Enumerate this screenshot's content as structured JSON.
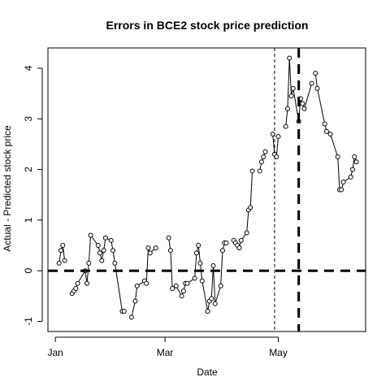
{
  "chart_data": {
    "type": "line",
    "title": "Errors in BCE2 stock price prediction",
    "xlabel": "Date",
    "ylabel": "Actual - Predicted stock price",
    "x_ticks": [
      {
        "label": "Jan",
        "value": "2013-01-01"
      },
      {
        "label": "Mar",
        "value": "2013-03-01"
      },
      {
        "label": "May",
        "value": "2013-05-01"
      }
    ],
    "y_ticks": [
      -1,
      0,
      1,
      2,
      3,
      4
    ],
    "xlim": [
      "2012-12-28",
      "2013-06-17"
    ],
    "ylim": [
      -1.2,
      4.4
    ],
    "grid": false,
    "series": [
      {
        "style": "line+points",
        "x": [
          "2013-01-03",
          "2013-01-04",
          "2013-01-05",
          "2013-01-06",
          "2013-01-07",
          "2013-01-10",
          "2013-01-11",
          "2013-01-12",
          "2013-01-13",
          "2013-01-17",
          "2013-01-18",
          "2013-01-19",
          "2013-01-20",
          "2013-01-24",
          "2013-01-25",
          "2013-01-26",
          "2013-01-27",
          "2013-01-28",
          "2013-01-31",
          "2013-02-01",
          "2013-02-02",
          "2013-02-06",
          "2013-02-07",
          "2013-02-08",
          "2013-02-11",
          "2013-02-13",
          "2013-02-14",
          "2013-02-18",
          "2013-02-19",
          "2013-02-20",
          "2013-02-21",
          "2013-02-24",
          "2013-02-25",
          "2013-02-26",
          "2013-03-03",
          "2013-03-04",
          "2013-03-05",
          "2013-03-06",
          "2013-03-07",
          "2013-03-10",
          "2013-03-11",
          "2013-03-12",
          "2013-03-13",
          "2013-03-17",
          "2013-03-18",
          "2013-03-19",
          "2013-03-20",
          "2013-03-21",
          "2013-03-24",
          "2013-03-25",
          "2013-03-26",
          "2013-03-27",
          "2013-03-28",
          "2013-03-31",
          "2013-04-01",
          "2013-04-02",
          "2013-04-03",
          "2013-04-04",
          "2013-04-07",
          "2013-04-08",
          "2013-04-09",
          "2013-04-10",
          "2013-04-11",
          "2013-04-14",
          "2013-04-15",
          "2013-04-16",
          "2013-04-17",
          "2013-04-18",
          "2013-04-21",
          "2013-04-22",
          "2013-04-23",
          "2013-04-24",
          "2013-04-25",
          "2013-04-28",
          "2013-04-29",
          "2013-04-30",
          "2013-05-01",
          "2013-05-02",
          "2013-05-05",
          "2013-05-06",
          "2013-05-07",
          "2013-05-08",
          "2013-05-09",
          "2013-05-12",
          "2013-05-13",
          "2013-05-14",
          "2013-05-15",
          "2013-05-19",
          "2013-05-20",
          "2013-05-21",
          "2013-05-22",
          "2013-05-26",
          "2013-05-27",
          "2013-05-28",
          "2013-05-29",
          "2013-06-02",
          "2013-06-03",
          "2013-06-04",
          "2013-06-05",
          "2013-06-09",
          "2013-06-10",
          "2013-06-11",
          "2013-06-12"
        ],
        "y": [
          0.15,
          0.4,
          0.5,
          0.2,
          null,
          -0.45,
          -0.4,
          -0.35,
          -0.25,
          0.0,
          -0.25,
          0.15,
          0.7,
          0.5,
          0.35,
          0.2,
          0.4,
          0.65,
          0.6,
          0.4,
          0.15,
          -0.8,
          -0.8,
          null,
          -0.92,
          -0.6,
          -0.3,
          -0.2,
          -0.25,
          0.45,
          0.35,
          0.45,
          null,
          null,
          0.65,
          0.4,
          -0.35,
          null,
          -0.3,
          -0.5,
          -0.4,
          -0.25,
          -0.25,
          -0.15,
          0.35,
          0.5,
          0.15,
          -0.2,
          -0.8,
          -0.6,
          -0.55,
          0.1,
          -0.65,
          -0.3,
          0.4,
          0.55,
          0.55,
          null,
          0.6,
          0.55,
          0.5,
          0.45,
          0.6,
          0.75,
          1.2,
          1.25,
          1.97,
          null,
          1.97,
          2.15,
          2.25,
          2.35,
          null,
          2.7,
          2.3,
          2.25,
          2.65,
          null,
          2.85,
          3.2,
          4.2,
          3.45,
          3.6,
          2.95,
          3.4,
          3.3,
          3.2,
          3.7,
          null,
          3.9,
          3.6,
          2.9,
          2.75,
          null,
          2.7,
          2.25,
          1.6,
          1.6,
          1.75,
          1.85,
          2.0,
          2.25,
          2.15
        ]
      }
    ],
    "reference_lines": [
      {
        "orientation": "horizontal",
        "value": 0,
        "style": "thick-dashed"
      },
      {
        "orientation": "vertical",
        "value": "2013-04-29",
        "style": "thin-dashed"
      },
      {
        "orientation": "vertical",
        "value": "2013-05-12",
        "style": "thick-dashed"
      }
    ]
  }
}
